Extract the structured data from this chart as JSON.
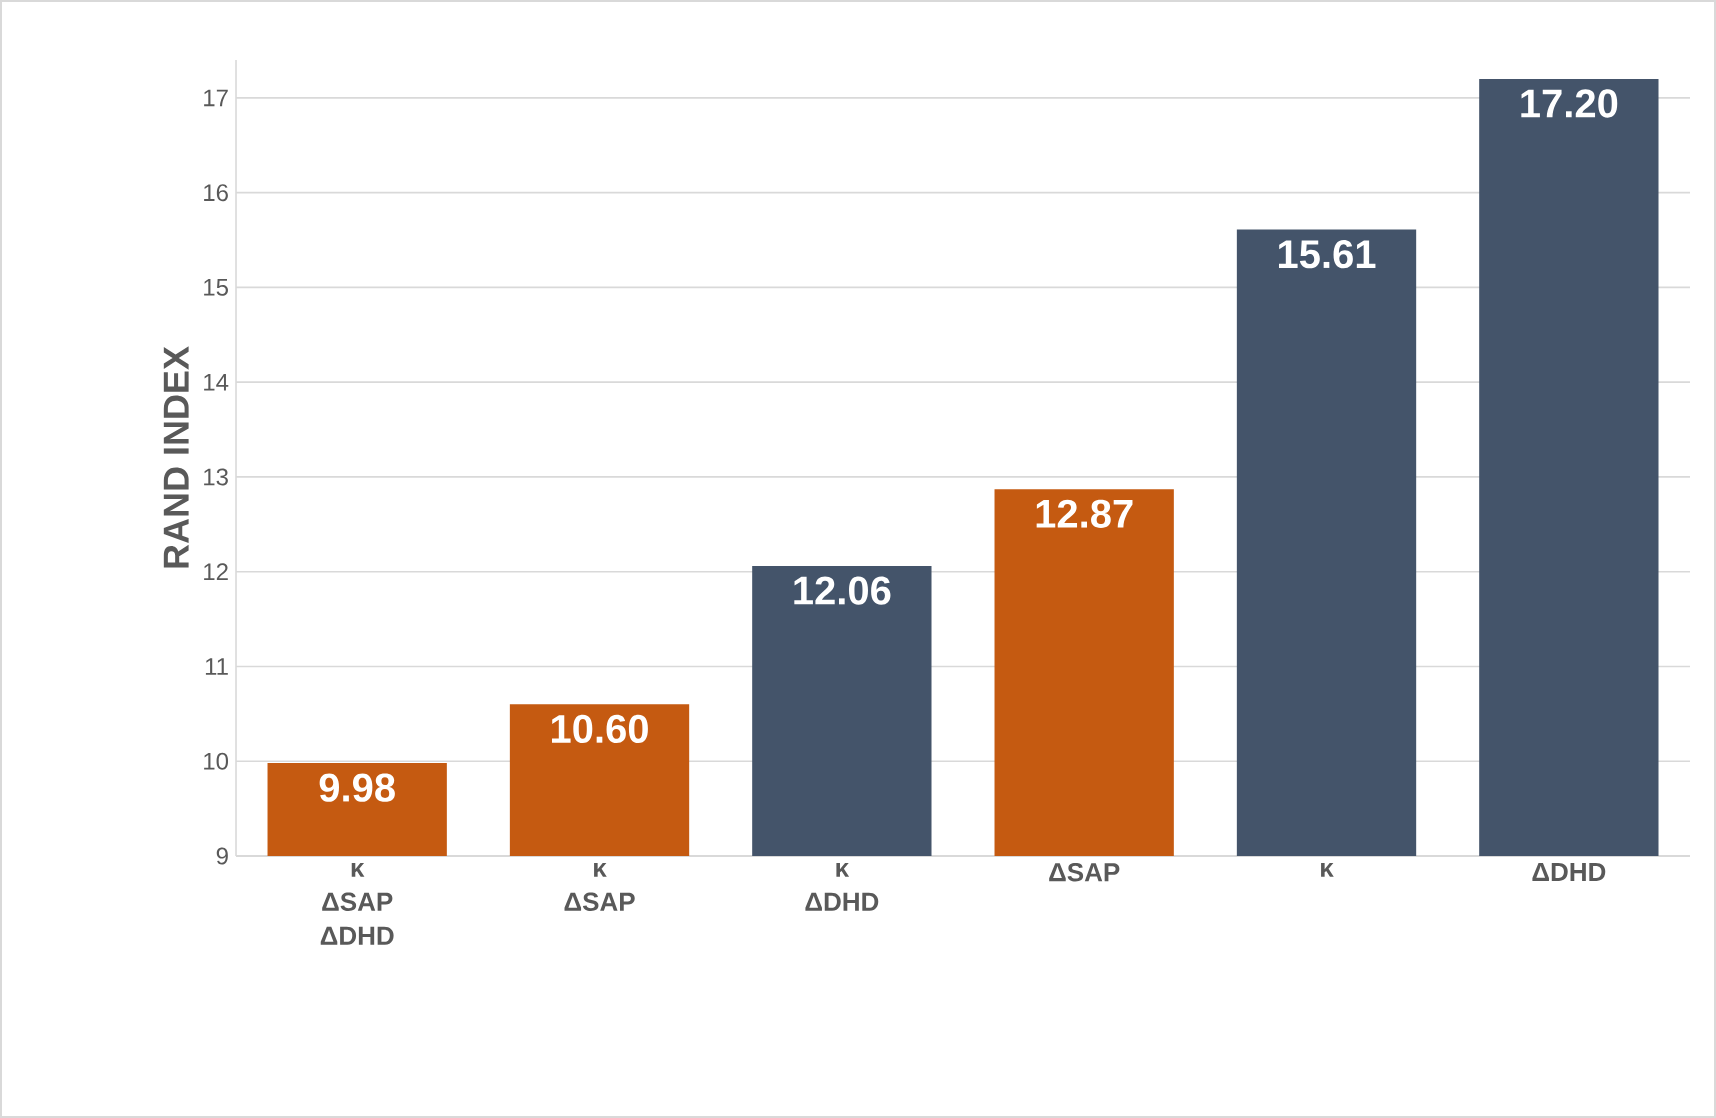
{
  "chart_data": {
    "type": "bar",
    "ylabel": "RAND INDEX",
    "categories": [
      "κ ΔSAP ΔDHD",
      "κ ΔSAP",
      "κ ΔDHD",
      "ΔSAP",
      "κ",
      "ΔDHD"
    ],
    "values": [
      9.98,
      10.6,
      12.06,
      12.87,
      15.61,
      17.2
    ],
    "colors": [
      "#c55a11",
      "#c55a11",
      "#44546a",
      "#c55a11",
      "#44546a",
      "#44546a"
    ],
    "value_labels": [
      "9.98",
      "10.60",
      "12.06",
      "12.87",
      "15.61",
      "17.20"
    ],
    "ylim": [
      9,
      17.4
    ],
    "yticks": [
      9,
      10,
      11,
      12,
      13,
      14,
      15,
      16,
      17
    ],
    "grid": "y"
  }
}
